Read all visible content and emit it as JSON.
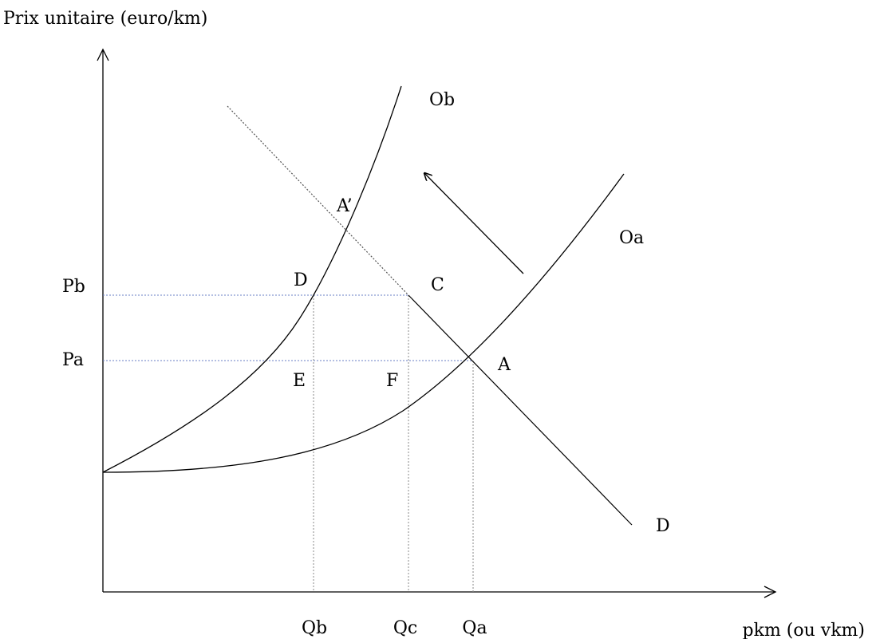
{
  "axes": {
    "y_title": "Prix unitaire (euro/km)",
    "x_title": "pkm (ou vkm)"
  },
  "price_labels": {
    "pb": "Pb",
    "pa": "Pa"
  },
  "quantity_labels": {
    "qb": "Qb",
    "qc": "Qc",
    "qa": "Qa"
  },
  "curves": {
    "supply_b": "Ob",
    "supply_a": "Oa",
    "demand": "D"
  },
  "points": {
    "a_prime": "A’",
    "d": "D",
    "c": "C",
    "a": "A",
    "e": "E",
    "f": "F"
  },
  "colors": {
    "ink": "#000000",
    "guide": "#6a7fc4",
    "guide_vertical": "#8a8a8a"
  }
}
